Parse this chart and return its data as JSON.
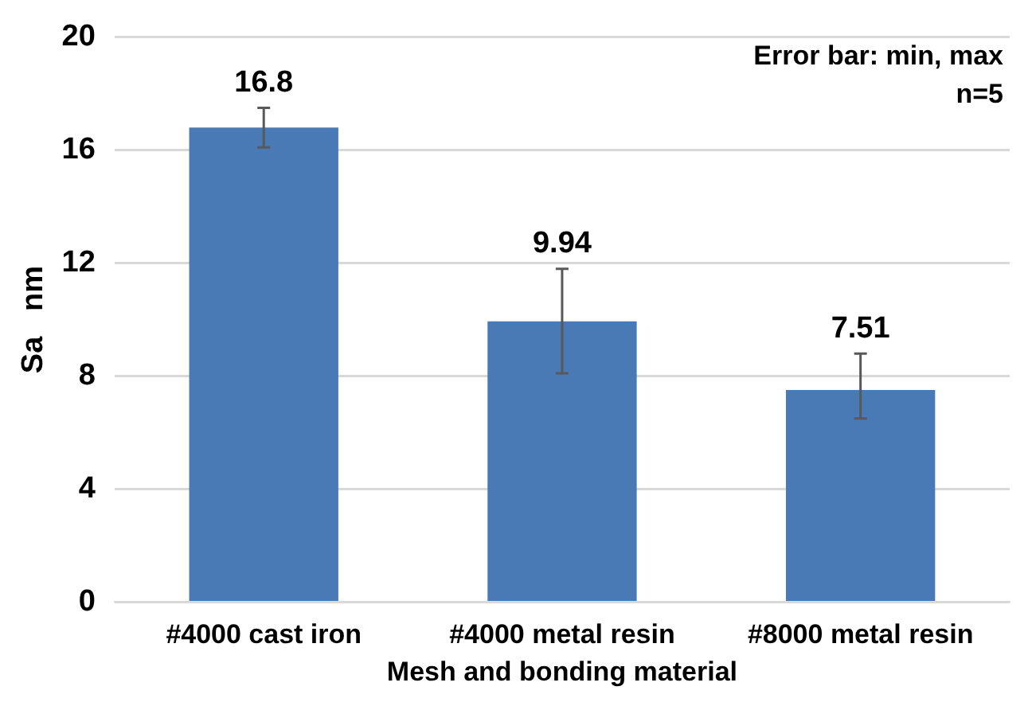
{
  "chart_data": {
    "type": "bar",
    "xlabel": "Mesh and bonding material",
    "ylabel": "Sa   nm",
    "categories": [
      "#4000 cast iron",
      "#4000 metal resin",
      "#8000 metal resin"
    ],
    "values": [
      16.8,
      9.94,
      7.51
    ],
    "color": "#4a7ab5",
    "errors": [
      [
        16.1,
        17.5
      ],
      [
        8.1,
        11.8
      ],
      [
        6.5,
        8.8
      ]
    ],
    "ylim": [
      0,
      20
    ],
    "yticks": [
      0,
      4,
      8,
      12,
      16,
      20
    ],
    "grid": "y",
    "data_labels": true,
    "annotations": [
      "Error bar: min, max",
      "n=5"
    ]
  }
}
